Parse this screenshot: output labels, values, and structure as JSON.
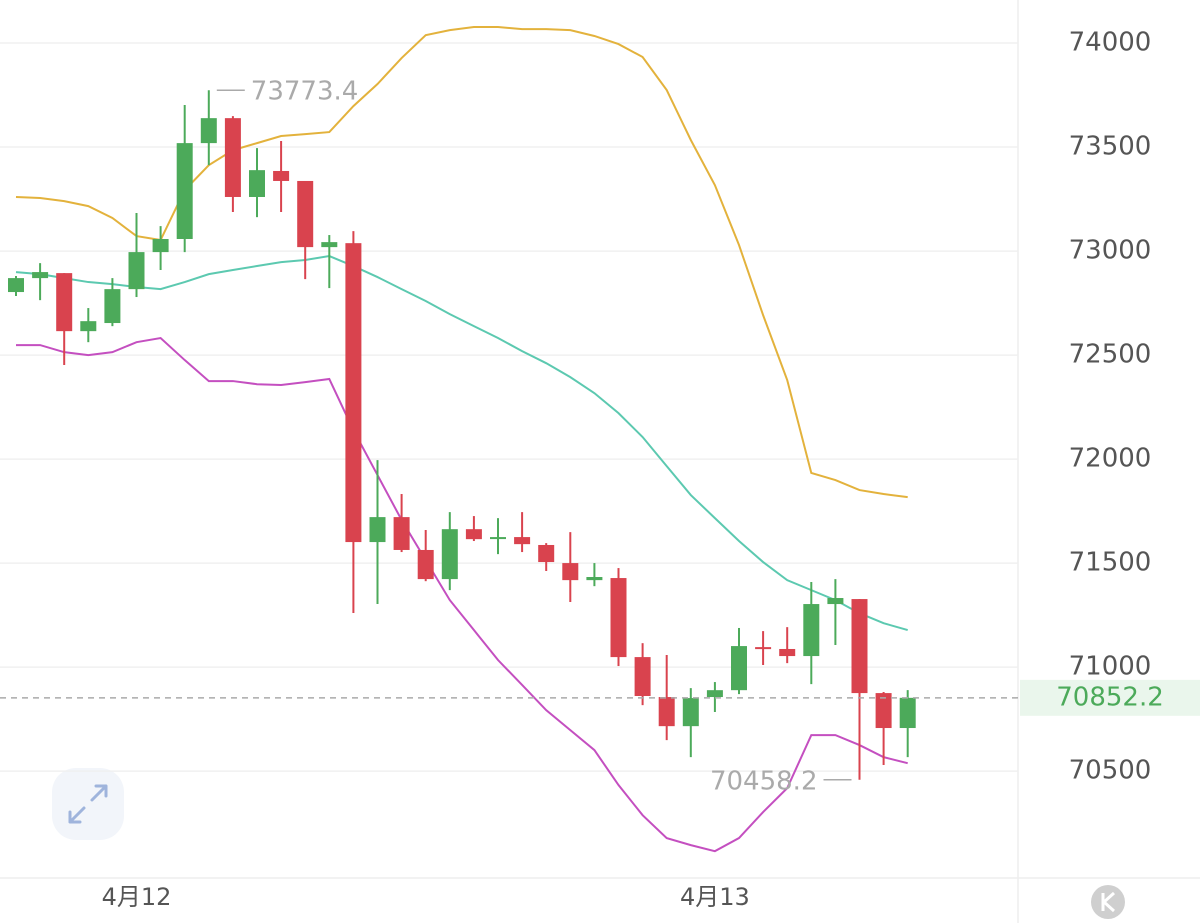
{
  "chart_data": {
    "type": "candlestick",
    "categories": [
      null,
      null,
      null,
      null,
      null,
      "4月12",
      null,
      null,
      null,
      null,
      null,
      null,
      null,
      null,
      null,
      null,
      null,
      null,
      null,
      null,
      null,
      null,
      null,
      null,
      null,
      null,
      null,
      null,
      null,
      "4月13",
      null,
      null,
      null,
      null,
      null,
      null,
      null,
      null
    ],
    "open": [
      72803,
      72870,
      72894,
      72615,
      72654,
      72817,
      72995,
      73058,
      73519,
      73639,
      73260,
      73385,
      73337,
      73019,
      73038,
      71601,
      71721,
      71563,
      71423,
      71663,
      71620,
      71625,
      71587,
      71500,
      71418,
      71428,
      71048,
      70856,
      70716,
      70856,
      70889,
      71096,
      71087,
      71053,
      71303,
      71327,
      70875,
      70707
    ],
    "high": [
      72880,
      72942,
      72894,
      72726,
      72870,
      73183,
      73120,
      73702,
      73773.4,
      73649,
      73495,
      73529,
      73337,
      73077,
      73096,
      71995,
      71832,
      71659,
      71745,
      71726,
      71716,
      71745,
      71596,
      71649,
      71500,
      71476,
      71115,
      71058,
      70899,
      70928,
      71188,
      71173,
      71192,
      71409,
      71423,
      71327,
      70880,
      70889
    ],
    "low": [
      72784,
      72764,
      72452,
      72562,
      72639,
      72779,
      72909,
      72995,
      73413,
      73188,
      73163,
      73188,
      72865,
      72822,
      71260,
      71303,
      71553,
      71413,
      71370,
      71606,
      71543,
      71553,
      71462,
      71313,
      71389,
      71005,
      70817,
      70649,
      70567,
      70784,
      70870,
      71010,
      71019,
      70918,
      71106,
      70458.2,
      70529,
      70567
    ],
    "close": [
      72870,
      72899,
      72615,
      72663,
      72817,
      72995,
      73058,
      73519,
      73639,
      73260,
      73389,
      73337,
      73019,
      73043,
      71601,
      71721,
      71563,
      71423,
      71663,
      71615,
      71625,
      71591,
      71505,
      71418,
      71433,
      71048,
      70861,
      70716,
      70851,
      70889,
      71101,
      71087,
      71053,
      71303,
      71332,
      70875,
      70707,
      70852.2
    ],
    "up_color": "#4caa5a",
    "down_color": "#d9434e",
    "bands": [
      {
        "color": "#e3b23c",
        "values": [
          73260,
          73255,
          73240,
          73216,
          73159,
          73072,
          73053,
          73293,
          73413,
          73485,
          73519,
          73553,
          73562,
          73572,
          73697,
          73803,
          73928,
          74038,
          74062,
          74077,
          74077,
          74067,
          74067,
          74062,
          74034,
          73995,
          73933,
          73774,
          73534,
          73317,
          73029,
          72692,
          72380,
          71933,
          71899,
          71851,
          71832,
          71817
        ]
      },
      {
        "color": "#5cc9b0",
        "values": [
          72899,
          72889,
          72870,
          72851,
          72841,
          72827,
          72817,
          72851,
          72889,
          72909,
          72928,
          72947,
          72957,
          72976,
          72928,
          72875,
          72817,
          72760,
          72697,
          72639,
          72582,
          72519,
          72461,
          72394,
          72317,
          72221,
          72106,
          71966,
          71827,
          71716,
          71606,
          71505,
          71418,
          71370,
          71322,
          71259,
          71211,
          71178
        ]
      },
      {
        "color": "#c44fc0",
        "values": [
          72548,
          72548,
          72514,
          72500,
          72514,
          72562,
          72582,
          72476,
          72375,
          72375,
          72360,
          72356,
          72370,
          72385,
          72139,
          71923,
          71707,
          71514,
          71322,
          71178,
          71034,
          70914,
          70793,
          70697,
          70601,
          70433,
          70288,
          70178,
          70144,
          70115,
          70178,
          70303,
          70418,
          70673,
          70673,
          70625,
          70567,
          70538
        ]
      }
    ],
    "ylim": [
      69986,
      74207
    ],
    "yticks": [
      70500,
      71000,
      71500,
      72000,
      72500,
      73000,
      73500,
      74000
    ],
    "grid": true,
    "last_price_line": true,
    "extreme_labels": true
  }
}
